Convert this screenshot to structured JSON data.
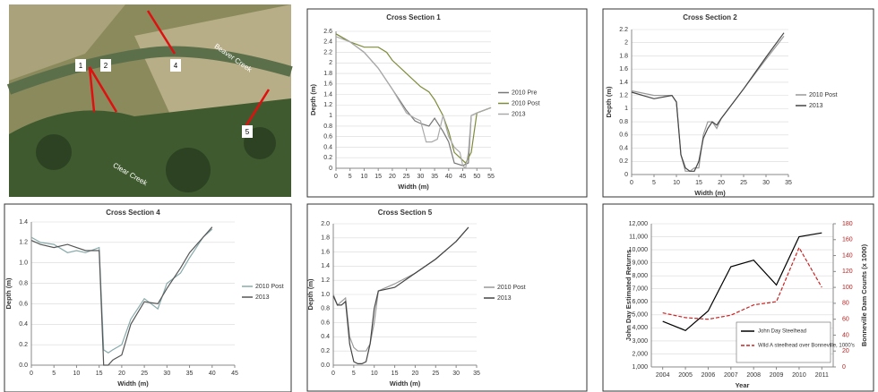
{
  "photo": {
    "labels": [
      "1",
      "2",
      "4",
      "5"
    ],
    "places": [
      "Beaver Creek",
      "Clear Creek"
    ]
  },
  "chart_data": [
    {
      "type": "line",
      "title": "Cross Section 1",
      "xlabel": "Width (m)",
      "ylabel": "Depth (m)",
      "xlim": [
        0,
        55
      ],
      "xticks": [
        0,
        5,
        10,
        15,
        20,
        25,
        30,
        35,
        40,
        45,
        50,
        55
      ],
      "ylim": [
        0,
        2.6
      ],
      "yticks": [
        0,
        0.2,
        0.4,
        0.6,
        0.8,
        1,
        1.2,
        1.4,
        1.6,
        1.8,
        2,
        2.2,
        2.4,
        2.6
      ],
      "legend": "right",
      "series": [
        {
          "name": "2010 Pre",
          "color": "#777777",
          "x": [
            0,
            5,
            10,
            15,
            20,
            25,
            28,
            30,
            33,
            35,
            38,
            40,
            42,
            45,
            47,
            48,
            50,
            55
          ],
          "values": [
            2.55,
            2.4,
            2.2,
            1.9,
            1.5,
            1.1,
            0.9,
            0.85,
            0.8,
            0.95,
            0.7,
            0.5,
            0.1,
            0.05,
            0.1,
            1.0,
            1.05,
            1.15
          ]
        },
        {
          "name": "2010 Post",
          "color": "#7f8b3a",
          "x": [
            0,
            5,
            10,
            12,
            15,
            18,
            20,
            25,
            30,
            33,
            35,
            38,
            40,
            42,
            44,
            46,
            48,
            50,
            55
          ],
          "values": [
            2.55,
            2.4,
            2.3,
            2.3,
            2.3,
            2.2,
            2.05,
            1.8,
            1.55,
            1.45,
            1.3,
            1.0,
            0.7,
            0.3,
            0.2,
            0.1,
            0.3,
            1.05,
            1.15
          ]
        },
        {
          "name": "2013",
          "color": "#aaaaaa",
          "x": [
            0,
            5,
            10,
            15,
            20,
            25,
            28,
            30,
            32,
            34,
            36,
            38,
            40,
            42,
            44,
            45,
            46,
            47,
            48,
            50,
            55
          ],
          "values": [
            2.5,
            2.4,
            2.2,
            1.9,
            1.5,
            1.05,
            0.95,
            0.9,
            0.5,
            0.5,
            0.55,
            1.0,
            0.6,
            0.4,
            0.3,
            0.05,
            0,
            0.3,
            1.0,
            1.05,
            1.15
          ]
        }
      ]
    },
    {
      "type": "line",
      "title": "Cross Section 2",
      "xlabel": "Width (m)",
      "ylabel": "Depth (m)",
      "xlim": [
        0,
        35
      ],
      "xticks": [
        0,
        5,
        10,
        15,
        20,
        25,
        30,
        35
      ],
      "ylim": [
        0,
        2.2
      ],
      "yticks": [
        0,
        0.2,
        0.4,
        0.6,
        0.8,
        1,
        1.2,
        1.4,
        1.6,
        1.8,
        2,
        2.2
      ],
      "legend": "right",
      "series": [
        {
          "name": "2010 Post",
          "color": "#999999",
          "x": [
            0,
            5,
            9,
            10,
            11,
            12,
            13,
            14,
            15,
            16,
            17,
            18,
            19,
            20,
            25,
            30,
            34
          ],
          "values": [
            1.27,
            1.2,
            1.2,
            1.1,
            0.3,
            0.05,
            0.05,
            0.1,
            0.1,
            0.6,
            0.8,
            0.8,
            0.7,
            0.85,
            1.3,
            1.75,
            2.1
          ]
        },
        {
          "name": "2013",
          "color": "#444444",
          "x": [
            0,
            5,
            9,
            10,
            11,
            12,
            13,
            14,
            15,
            16,
            17,
            18,
            19,
            20,
            25,
            30,
            34
          ],
          "values": [
            1.25,
            1.15,
            1.2,
            1.1,
            0.3,
            0.1,
            0.05,
            0.05,
            0.2,
            0.55,
            0.7,
            0.8,
            0.75,
            0.85,
            1.3,
            1.78,
            2.15
          ]
        }
      ]
    },
    {
      "type": "line",
      "title": "Cross Section 4",
      "xlabel": "Width (m)",
      "ylabel": "Depth (m)",
      "xlim": [
        0,
        45
      ],
      "xticks": [
        0,
        5,
        10,
        15,
        20,
        25,
        30,
        35,
        40,
        45
      ],
      "ylim": [
        0,
        1.4
      ],
      "yticks": [
        {
          "value": 0,
          "label": "0.0"
        },
        0.2,
        0.4,
        0.6,
        0.8,
        {
          "value": 1,
          "label": "1.0"
        },
        1.2,
        1.4
      ],
      "legend": "right",
      "series": [
        {
          "name": "2010 Post",
          "color": "#88aaaa",
          "x": [
            0,
            2,
            5,
            8,
            10,
            12,
            15,
            16,
            17,
            18,
            20,
            22,
            25,
            28,
            30,
            33,
            35,
            38,
            40
          ],
          "values": [
            1.25,
            1.2,
            1.18,
            1.1,
            1.12,
            1.1,
            1.15,
            0.15,
            0.12,
            0.15,
            0.2,
            0.45,
            0.65,
            0.55,
            0.8,
            0.9,
            1.05,
            1.25,
            1.33
          ]
        },
        {
          "name": "2013",
          "color": "#555555",
          "x": [
            0,
            2,
            5,
            8,
            10,
            12,
            15,
            16,
            17,
            18,
            20,
            22,
            25,
            28,
            30,
            33,
            35,
            38,
            40
          ],
          "values": [
            1.22,
            1.18,
            1.15,
            1.18,
            1.15,
            1.12,
            1.12,
            0.0,
            0.0,
            0.05,
            0.1,
            0.4,
            0.62,
            0.6,
            0.75,
            0.95,
            1.1,
            1.25,
            1.35
          ]
        }
      ]
    },
    {
      "type": "line",
      "title": "Cross Section 5",
      "xlabel": "Width (m)",
      "ylabel": "Depth (m)",
      "xlim": [
        0,
        35
      ],
      "xticks": [
        0,
        5,
        10,
        15,
        20,
        25,
        30,
        35
      ],
      "ylim": [
        0,
        2
      ],
      "yticks": [
        {
          "value": 0,
          "label": "0.0"
        },
        0.2,
        0.4,
        0.6,
        0.8,
        {
          "value": 1,
          "label": "1.0"
        },
        1.2,
        1.4,
        1.6,
        1.8,
        {
          "value": 2,
          "label": "2.0"
        }
      ],
      "legend": "right",
      "series": [
        {
          "name": "2010 Post",
          "color": "#999999",
          "x": [
            0,
            1,
            2,
            3,
            4,
            5,
            6,
            7,
            8,
            9,
            10,
            11,
            15,
            20,
            25,
            30,
            33
          ],
          "values": [
            1.0,
            0.85,
            0.9,
            0.95,
            0.4,
            0.25,
            0.2,
            0.2,
            0.2,
            0.3,
            0.6,
            1.05,
            1.15,
            1.3,
            1.5,
            1.75,
            1.95
          ]
        },
        {
          "name": "2013",
          "color": "#444444",
          "x": [
            0,
            1,
            2,
            3,
            4,
            5,
            6,
            7,
            8,
            9,
            10,
            11,
            15,
            20,
            25,
            30,
            33
          ],
          "values": [
            0.98,
            0.85,
            0.85,
            0.9,
            0.3,
            0.05,
            0.02,
            0.02,
            0.05,
            0.3,
            0.8,
            1.05,
            1.1,
            1.3,
            1.5,
            1.75,
            1.95
          ]
        }
      ]
    },
    {
      "type": "line",
      "xlabel": "Year",
      "ylabel": "John Day Estimated Returns",
      "y2label": "Bonneville Dam Counts (x 1000)",
      "x": [
        2004,
        2005,
        2006,
        2007,
        2008,
        2009,
        2010,
        2011
      ],
      "xlim": [
        2003.5,
        2011.5
      ],
      "xticks": [
        2004,
        2005,
        2006,
        2007,
        2008,
        2009,
        2010,
        2011
      ],
      "ylim": [
        1000,
        12000
      ],
      "yticks": [
        {
          "value": 1000,
          "label": "1,000"
        },
        {
          "value": 2000,
          "label": "2,000"
        },
        {
          "value": 3000,
          "label": "3,000"
        },
        {
          "value": 4000,
          "label": "4,000"
        },
        {
          "value": 5000,
          "label": "5,000"
        },
        {
          "value": 6000,
          "label": "6,000"
        },
        {
          "value": 7000,
          "label": "7,000"
        },
        {
          "value": 8000,
          "label": "8,000"
        },
        {
          "value": 9000,
          "label": "9,000"
        },
        {
          "value": 10000,
          "label": "10,000"
        },
        {
          "value": 11000,
          "label": "11,000"
        },
        {
          "value": 12000,
          "label": "12,000"
        }
      ],
      "y2lim": [
        0,
        180
      ],
      "y2ticks": [
        0,
        20,
        40,
        60,
        80,
        100,
        120,
        140,
        160,
        180
      ],
      "legend": "lower right",
      "series": [
        {
          "name": "John Day Steelhead",
          "color": "#000000",
          "values": [
            4500,
            3800,
            5300,
            8700,
            9200,
            7300,
            11000,
            11300
          ]
        },
        {
          "name": "Wild A steelhead over Bonneville, 1000's",
          "color": "#cc2222",
          "axis": "y2",
          "dashed": true,
          "values": [
            68,
            62,
            60,
            65,
            78,
            82,
            150,
            100
          ]
        }
      ]
    }
  ]
}
